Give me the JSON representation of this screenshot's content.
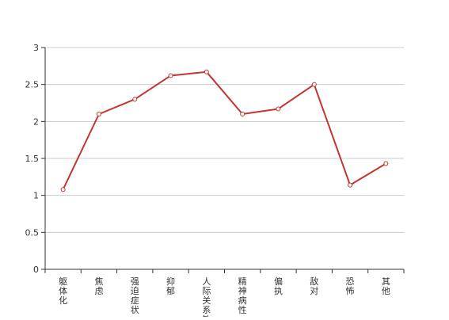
{
  "chart_data": {
    "type": "line",
    "title": "",
    "xlabel": "",
    "ylabel": "",
    "categories": [
      "躯体化",
      "焦虑",
      "强迫症状",
      "抑郁",
      "人际关系敏感",
      "精神病性",
      "偏执",
      "敌对",
      "恐怖",
      "其他"
    ],
    "series": [
      {
        "values": [
          1.08,
          2.1,
          2.3,
          2.62,
          2.67,
          2.1,
          2.17,
          2.5,
          1.14,
          1.43
        ]
      }
    ],
    "yticks": [
      "0",
      "0.5",
      "1",
      "1.5",
      "2",
      "2.5",
      "3"
    ],
    "ylim": [
      0,
      3
    ],
    "grid": true,
    "legend": "none",
    "colors": {
      "line": "#c23531",
      "grid": "#cccccc",
      "axis": "#333333"
    }
  }
}
